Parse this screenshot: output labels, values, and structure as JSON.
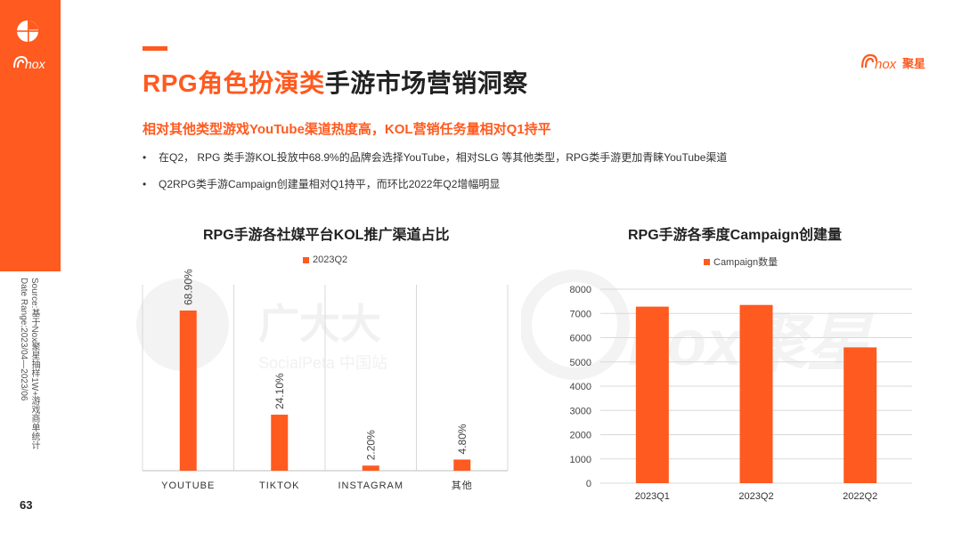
{
  "page": {
    "number": "63",
    "source": "Source:基于Nox聚星抽样1W+游戏商单统计",
    "date_range": "Date Range:2023/04—2023/06",
    "title_highlight": "RPG角色扮演类",
    "title_rest": "手游市场营销洞察",
    "subtitle": "相对其他类型游戏YouTube渠道热度高，KOL营销任务量相对Q1持平",
    "bullets": [
      "在Q2， RPG 类手游KOL投放中68.9%的品牌会选择YouTube，相对SLG 等其他类型，RPG类手游更加青睐YouTube渠道",
      "Q2RPG类手游Campaign创建量相对Q1持平，而环比2022年Q2增幅明显"
    ],
    "bullet_marker": "•"
  },
  "brand": {
    "logo_text": "nox",
    "logo_cn": "聚星",
    "accent": "#ff5a1f"
  },
  "watermark": {
    "left_cn": "广大大",
    "left_en": "SocialPeta 中国站",
    "right_text": "nox聚星"
  },
  "chart_data": [
    {
      "type": "bar",
      "title": "RPG手游各社媒平台KOL推广渠道占比",
      "categories": [
        "YOUTUBE",
        "TIKTOK",
        "INSTAGRAM",
        "其他"
      ],
      "series": [
        {
          "name": "2023Q2",
          "values": [
            68.9,
            24.1,
            2.2,
            4.8
          ]
        }
      ],
      "data_labels": [
        "68.90%",
        "24.10%",
        "2.20%",
        "4.80%"
      ],
      "ylim": [
        0,
        80
      ],
      "grid": false,
      "legend": "top",
      "color": "#ff5a1f"
    },
    {
      "type": "bar",
      "title": "RPG手游各季度Campaign创建量",
      "categories": [
        "2023Q1",
        "2023Q2",
        "2022Q2"
      ],
      "series": [
        {
          "name": "Campaign数量",
          "values": [
            7280,
            7350,
            5600
          ]
        }
      ],
      "yticks": [
        "0",
        "1000",
        "2000",
        "3000",
        "4000",
        "5000",
        "6000",
        "7000",
        "8000"
      ],
      "ylim": [
        0,
        8000
      ],
      "grid": true,
      "legend": "top",
      "color": "#ff5a1f"
    }
  ]
}
